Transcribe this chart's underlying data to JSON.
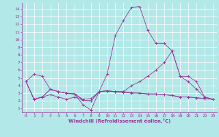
{
  "xlabel": "Windchill (Refroidissement éolien,°C)",
  "bg_color": "#b3e8e8",
  "line_color": "#993399",
  "grid_color": "#ffffff",
  "xlim": [
    -0.5,
    23.5
  ],
  "ylim": [
    0.5,
    14.8
  ],
  "yticks": [
    1,
    2,
    3,
    4,
    5,
    6,
    7,
    8,
    9,
    10,
    11,
    12,
    13,
    14
  ],
  "xticks": [
    0,
    1,
    2,
    3,
    4,
    5,
    6,
    7,
    8,
    9,
    10,
    11,
    12,
    13,
    14,
    15,
    16,
    17,
    18,
    19,
    20,
    21,
    22,
    23
  ],
  "series": [
    {
      "x": [
        0,
        1,
        2,
        3,
        4,
        5,
        6,
        7,
        8,
        9,
        10,
        11,
        12,
        13,
        14,
        15,
        16,
        17,
        18,
        19,
        20,
        21,
        22,
        23
      ],
      "y": [
        4.5,
        5.5,
        5.2,
        3.5,
        3.2,
        3.0,
        2.9,
        2.2,
        2.3,
        3.2,
        3.3,
        3.2,
        3.1,
        3.0,
        3.0,
        2.9,
        2.9,
        2.8,
        2.7,
        2.5,
        2.5,
        2.4,
        2.3,
        2.2
      ]
    },
    {
      "x": [
        0,
        1,
        2,
        3,
        4,
        5,
        6,
        7,
        8,
        9,
        10,
        11,
        12,
        13,
        14,
        15,
        16,
        17,
        18,
        19,
        20,
        21,
        22,
        23
      ],
      "y": [
        4.5,
        2.2,
        2.5,
        2.8,
        2.5,
        2.2,
        2.5,
        2.1,
        2.0,
        3.2,
        3.3,
        3.2,
        3.2,
        3.1,
        3.0,
        2.9,
        2.9,
        2.8,
        2.7,
        2.5,
        2.5,
        2.4,
        2.3,
        2.2
      ]
    },
    {
      "x": [
        0,
        1,
        2,
        3,
        4,
        5,
        6,
        7,
        8,
        9,
        10,
        11,
        12,
        13,
        14,
        15,
        16,
        17,
        18,
        19,
        20,
        21,
        22,
        23
      ],
      "y": [
        4.5,
        2.2,
        2.5,
        3.5,
        3.2,
        3.0,
        2.9,
        1.5,
        0.8,
        3.2,
        5.5,
        10.5,
        12.5,
        14.2,
        14.3,
        11.2,
        9.5,
        9.5,
        8.5,
        5.2,
        4.5,
        3.5,
        2.5,
        2.2
      ]
    },
    {
      "x": [
        0,
        1,
        2,
        3,
        4,
        5,
        6,
        7,
        8,
        9,
        10,
        11,
        12,
        13,
        14,
        15,
        16,
        17,
        18,
        19,
        20,
        21,
        22,
        23
      ],
      "y": [
        4.5,
        2.2,
        2.5,
        3.5,
        3.2,
        3.0,
        2.9,
        2.1,
        2.0,
        3.2,
        3.3,
        3.2,
        3.2,
        4.0,
        4.5,
        5.2,
        6.0,
        7.0,
        8.5,
        5.2,
        5.2,
        4.5,
        2.5,
        2.2
      ]
    }
  ]
}
